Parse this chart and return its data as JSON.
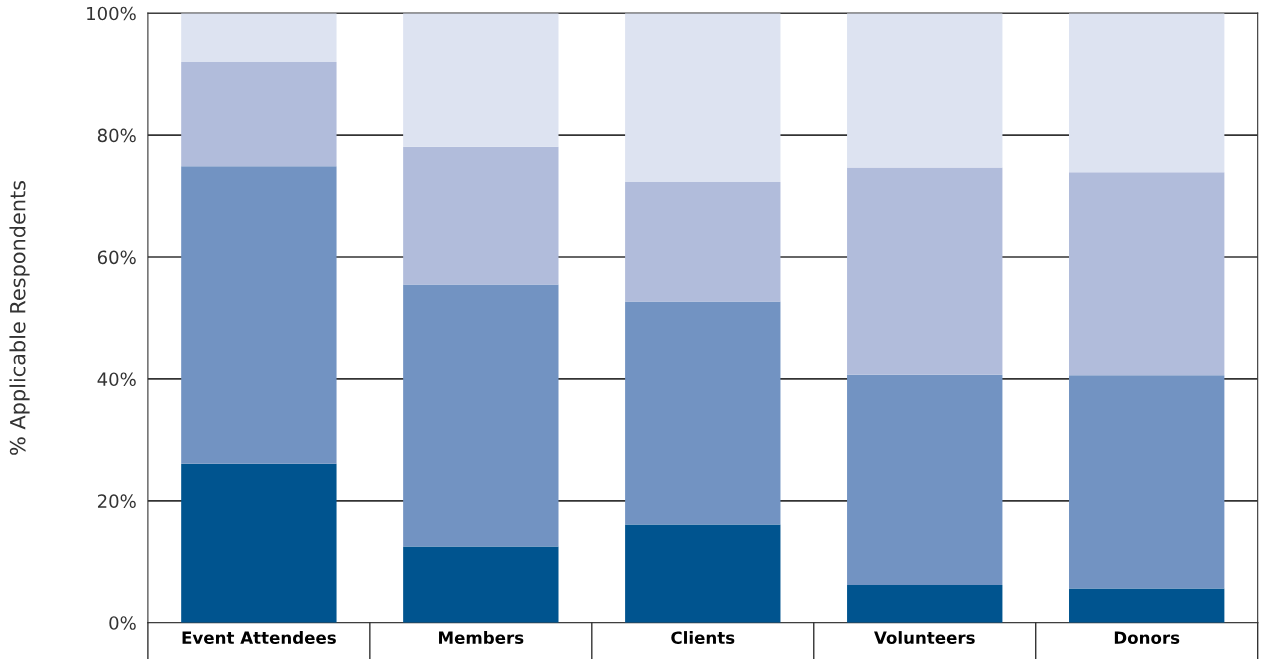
{
  "chart_data": {
    "type": "bar",
    "stacked": true,
    "ylabel": "% Applicable Respondents",
    "categories": [
      "Event Attendees",
      "Members",
      "Clients",
      "Volunteers",
      "Donors"
    ],
    "series": [
      {
        "color": "#00548f",
        "values": [
          26.1,
          12.5,
          16.1,
          6.2,
          5.6
        ]
      },
      {
        "color": "#7293c2",
        "values": [
          48.8,
          43.0,
          36.6,
          34.5,
          35.0
        ]
      },
      {
        "color": "#b1bcdb",
        "values": [
          17.1,
          22.6,
          19.6,
          34.0,
          33.3
        ]
      },
      {
        "color": "#dde3f1",
        "values": [
          8.0,
          21.9,
          27.7,
          25.3,
          26.1
        ]
      }
    ],
    "ylim": [
      0,
      100
    ],
    "yticks": [
      {
        "value": 0,
        "label": "0%"
      },
      {
        "value": 20,
        "label": "20%"
      },
      {
        "value": 40,
        "label": "40%"
      },
      {
        "value": 60,
        "label": "60%"
      },
      {
        "value": 80,
        "label": "80%"
      },
      {
        "value": 100,
        "label": "100%"
      }
    ],
    "grid": "y",
    "legend": false
  }
}
